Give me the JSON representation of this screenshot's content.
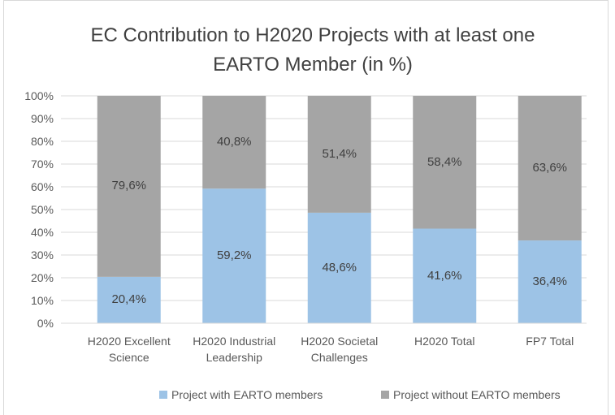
{
  "chart_data": {
    "type": "stacked_bar",
    "title": "EC Contribution to H2020 Projects with at least one EARTO Member (in %)",
    "categories": [
      "H2020 Excellent Science",
      "H2020 Industrial Leadership",
      "H2020 Societal Challenges",
      "H2020 Total",
      "FP7 Total"
    ],
    "series": [
      {
        "name": "Project with EARTO members",
        "color": "#9dc3e6",
        "values": [
          20.4,
          59.2,
          48.6,
          41.6,
          36.4
        ],
        "value_labels": [
          "20,4%",
          "59,2%",
          "48,6%",
          "41,6%",
          "36,4%"
        ]
      },
      {
        "name": "Project without EARTO members",
        "color": "#a5a5a5",
        "values": [
          79.6,
          40.8,
          51.4,
          58.4,
          63.6
        ],
        "value_labels": [
          "79,6%",
          "40,8%",
          "51,4%",
          "58,4%",
          "63,6%"
        ]
      }
    ],
    "ylim": [
      0,
      100
    ],
    "yticks": [
      {
        "value": 0,
        "label": "0%"
      },
      {
        "value": 10,
        "label": "10%"
      },
      {
        "value": 20,
        "label": "20%"
      },
      {
        "value": 30,
        "label": "30%"
      },
      {
        "value": 40,
        "label": "40%"
      },
      {
        "value": 50,
        "label": "50%"
      },
      {
        "value": 60,
        "label": "60%"
      },
      {
        "value": 70,
        "label": "70%"
      },
      {
        "value": 80,
        "label": "80%"
      },
      {
        "value": 90,
        "label": "90%"
      },
      {
        "value": 100,
        "label": "100%"
      }
    ],
    "grid": true,
    "legend": "bottom"
  }
}
